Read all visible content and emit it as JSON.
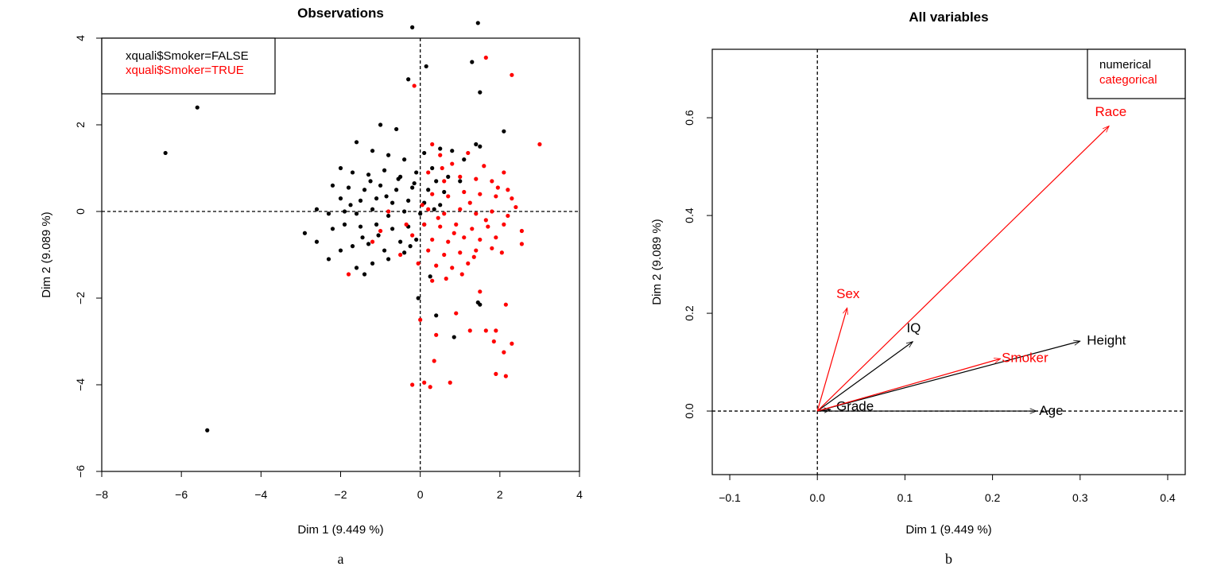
{
  "colors": {
    "black": "#000000",
    "red": "#ff0000"
  },
  "chart_data": [
    {
      "type": "scatter",
      "title": "Observations",
      "xlabel": "Dim 1 (9.449 %)",
      "ylabel": "Dim 2 (9.089 %)",
      "caption": "a",
      "xlim": [
        -8,
        4
      ],
      "ylim": [
        -6,
        4
      ],
      "xticks": [
        -8,
        -6,
        -4,
        -2,
        0,
        2,
        4
      ],
      "yticks": [
        -6,
        -4,
        -2,
        0,
        2,
        4
      ],
      "tick_labels_x": [
        "−8",
        "−6",
        "−4",
        "−2",
        "0",
        "2",
        "4"
      ],
      "tick_labels_y": [
        "−6",
        "−4",
        "−2",
        "0",
        "2",
        "4"
      ],
      "legend": {
        "position": "top-left",
        "entries": [
          {
            "label": "xquali$Smoker=FALSE",
            "color": "#000000"
          },
          {
            "label": "xquali$Smoker=TRUE",
            "color": "#ff0000"
          }
        ]
      },
      "reference_lines": {
        "x": 0,
        "y": 0,
        "style": "dashed"
      },
      "series": [
        {
          "name": "xquali$Smoker=FALSE",
          "color": "#000000",
          "points": [
            [
              -6.4,
              1.35
            ],
            [
              -5.6,
              2.4
            ],
            [
              -5.35,
              -5.05
            ],
            [
              1.45,
              4.35
            ],
            [
              -0.2,
              4.25
            ],
            [
              1.3,
              3.45
            ],
            [
              0.15,
              3.35
            ],
            [
              -0.3,
              3.05
            ],
            [
              1.5,
              2.75
            ],
            [
              2.1,
              1.85
            ],
            [
              -1.0,
              2.0
            ],
            [
              -0.6,
              1.9
            ],
            [
              1.4,
              1.55
            ],
            [
              1.5,
              1.5
            ],
            [
              -1.6,
              1.6
            ],
            [
              -1.2,
              1.4
            ],
            [
              -0.8,
              1.3
            ],
            [
              -0.4,
              1.2
            ],
            [
              0.1,
              1.35
            ],
            [
              0.5,
              1.45
            ],
            [
              0.8,
              1.4
            ],
            [
              1.1,
              1.2
            ],
            [
              -2.0,
              1.0
            ],
            [
              -1.7,
              0.9
            ],
            [
              -1.3,
              0.85
            ],
            [
              -0.9,
              0.95
            ],
            [
              -0.5,
              0.8
            ],
            [
              -0.1,
              0.9
            ],
            [
              0.3,
              1.0
            ],
            [
              0.7,
              0.8
            ],
            [
              1.0,
              0.7
            ],
            [
              -2.2,
              0.6
            ],
            [
              -1.8,
              0.55
            ],
            [
              -1.4,
              0.5
            ],
            [
              -1.0,
              0.6
            ],
            [
              -0.6,
              0.5
            ],
            [
              -0.2,
              0.55
            ],
            [
              0.2,
              0.5
            ],
            [
              0.6,
              0.45
            ],
            [
              -2.0,
              0.3
            ],
            [
              -1.5,
              0.25
            ],
            [
              -1.1,
              0.3
            ],
            [
              -0.7,
              0.2
            ],
            [
              -0.3,
              0.25
            ],
            [
              0.1,
              0.2
            ],
            [
              0.5,
              0.15
            ],
            [
              -2.6,
              0.05
            ],
            [
              -2.3,
              -0.05
            ],
            [
              -1.9,
              0.0
            ],
            [
              -1.6,
              -0.05
            ],
            [
              -1.2,
              0.05
            ],
            [
              -0.8,
              -0.1
            ],
            [
              -0.4,
              0.0
            ],
            [
              0.0,
              -0.05
            ],
            [
              -2.9,
              -0.5
            ],
            [
              -2.6,
              -0.7
            ],
            [
              -2.2,
              -0.4
            ],
            [
              -1.9,
              -0.3
            ],
            [
              -1.5,
              -0.35
            ],
            [
              -1.1,
              -0.3
            ],
            [
              -0.7,
              -0.4
            ],
            [
              -0.3,
              -0.35
            ],
            [
              0.1,
              -0.3
            ],
            [
              -2.0,
              -0.9
            ],
            [
              -1.7,
              -0.8
            ],
            [
              -1.3,
              -0.75
            ],
            [
              -0.9,
              -0.9
            ],
            [
              -0.5,
              -0.7
            ],
            [
              -0.1,
              -0.65
            ],
            [
              -1.6,
              -1.3
            ],
            [
              -1.2,
              -1.2
            ],
            [
              -0.8,
              -1.1
            ],
            [
              -0.4,
              -0.95
            ],
            [
              -1.4,
              -1.45
            ],
            [
              -2.3,
              -1.1
            ],
            [
              0.25,
              -1.5
            ],
            [
              -0.05,
              -2.0
            ],
            [
              0.4,
              -2.4
            ],
            [
              1.45,
              -2.1
            ],
            [
              1.5,
              -2.15
            ],
            [
              0.85,
              -2.9
            ],
            [
              -1.25,
              0.7
            ],
            [
              -0.55,
              0.75
            ],
            [
              0.4,
              0.7
            ],
            [
              -1.75,
              0.15
            ],
            [
              -1.05,
              -0.55
            ],
            [
              -0.85,
              0.35
            ],
            [
              -0.15,
              0.65
            ],
            [
              0.35,
              0.05
            ],
            [
              -1.45,
              -0.6
            ],
            [
              -0.25,
              -0.8
            ]
          ]
        },
        {
          "name": "xquali$Smoker=TRUE",
          "color": "#ff0000",
          "points": [
            [
              1.65,
              3.55
            ],
            [
              2.3,
              3.15
            ],
            [
              -0.15,
              2.9
            ],
            [
              3.0,
              1.55
            ],
            [
              0.3,
              1.55
            ],
            [
              0.5,
              1.3
            ],
            [
              1.2,
              1.35
            ],
            [
              0.8,
              1.1
            ],
            [
              1.6,
              1.05
            ],
            [
              2.1,
              0.9
            ],
            [
              0.2,
              0.9
            ],
            [
              0.6,
              0.7
            ],
            [
              1.0,
              0.8
            ],
            [
              1.4,
              0.75
            ],
            [
              1.8,
              0.7
            ],
            [
              2.2,
              0.5
            ],
            [
              0.3,
              0.4
            ],
            [
              0.7,
              0.35
            ],
            [
              1.1,
              0.45
            ],
            [
              1.5,
              0.4
            ],
            [
              1.9,
              0.35
            ],
            [
              2.3,
              0.3
            ],
            [
              0.2,
              0.05
            ],
            [
              0.6,
              -0.05
            ],
            [
              1.0,
              0.05
            ],
            [
              1.4,
              -0.05
            ],
            [
              1.8,
              0.0
            ],
            [
              2.2,
              -0.1
            ],
            [
              0.1,
              -0.3
            ],
            [
              0.5,
              -0.35
            ],
            [
              0.9,
              -0.3
            ],
            [
              1.3,
              -0.4
            ],
            [
              1.7,
              -0.35
            ],
            [
              2.1,
              -0.3
            ],
            [
              2.55,
              -0.45
            ],
            [
              2.55,
              -0.75
            ],
            [
              -0.2,
              -0.55
            ],
            [
              0.3,
              -0.65
            ],
            [
              0.7,
              -0.7
            ],
            [
              1.1,
              -0.6
            ],
            [
              1.5,
              -0.65
            ],
            [
              1.9,
              -0.6
            ],
            [
              0.2,
              -0.9
            ],
            [
              0.6,
              -1.0
            ],
            [
              1.0,
              -0.95
            ],
            [
              1.4,
              -0.9
            ],
            [
              1.8,
              -0.85
            ],
            [
              -0.05,
              -1.2
            ],
            [
              0.4,
              -1.25
            ],
            [
              0.8,
              -1.3
            ],
            [
              1.2,
              -1.2
            ],
            [
              -0.5,
              -1.0
            ],
            [
              -1.0,
              -0.45
            ],
            [
              -1.8,
              -1.45
            ],
            [
              0.3,
              -1.6
            ],
            [
              1.5,
              -1.85
            ],
            [
              0.0,
              -2.5
            ],
            [
              0.9,
              -2.35
            ],
            [
              1.9,
              -2.75
            ],
            [
              2.15,
              -2.15
            ],
            [
              2.1,
              -3.25
            ],
            [
              2.3,
              -3.05
            ],
            [
              1.65,
              -2.75
            ],
            [
              1.25,
              -2.75
            ],
            [
              0.4,
              -2.85
            ],
            [
              1.85,
              -3.0
            ],
            [
              0.35,
              -3.45
            ],
            [
              -0.2,
              -4.0
            ],
            [
              0.1,
              -3.95
            ],
            [
              0.25,
              -4.05
            ],
            [
              0.75,
              -3.95
            ],
            [
              1.9,
              -3.75
            ],
            [
              2.15,
              -3.8
            ],
            [
              0.45,
              -0.15
            ],
            [
              1.25,
              0.2
            ],
            [
              1.65,
              -0.2
            ],
            [
              0.85,
              -0.5
            ],
            [
              2.4,
              0.1
            ],
            [
              -0.8,
              0.0
            ],
            [
              -1.2,
              -0.7
            ],
            [
              0.05,
              0.15
            ],
            [
              1.95,
              0.55
            ],
            [
              0.55,
              1.0
            ],
            [
              1.05,
              -1.45
            ],
            [
              0.65,
              -1.55
            ],
            [
              2.05,
              -0.95
            ],
            [
              1.35,
              -1.05
            ],
            [
              -0.35,
              -0.3
            ]
          ]
        }
      ]
    },
    {
      "type": "arrows",
      "title": "All variables",
      "xlabel": "Dim 1 (9.449 %)",
      "ylabel": "Dim 2 (9.089 %)",
      "caption": "b",
      "xlim": [
        -0.12,
        0.42
      ],
      "ylim": [
        -0.13,
        0.74
      ],
      "xticks": [
        -0.1,
        0.0,
        0.1,
        0.2,
        0.3,
        0.4
      ],
      "yticks": [
        0.0,
        0.2,
        0.4,
        0.6
      ],
      "tick_labels_x": [
        "−0.1",
        "0.0",
        "0.1",
        "0.2",
        "0.3",
        "0.4"
      ],
      "tick_labels_y": [
        "0.0",
        "0.2",
        "0.4",
        "0.6"
      ],
      "legend": {
        "position": "top-right",
        "entries": [
          {
            "label": "numerical",
            "color": "#000000"
          },
          {
            "label": "categorical",
            "color": "#ff0000"
          }
        ]
      },
      "reference_lines": {
        "x": 0,
        "y": 0,
        "style": "dashed"
      },
      "series": [
        {
          "name": "numerical",
          "color": "#000000",
          "vectors": [
            {
              "label": "IQ",
              "x": 0.109,
              "y": 0.142,
              "lx": 0.11,
              "ly": 0.168
            },
            {
              "label": "Height",
              "x": 0.3,
              "y": 0.143,
              "lx": 0.33,
              "ly": 0.143
            },
            {
              "label": "Grade",
              "x": 0.015,
              "y": 0.003,
              "lx": 0.043,
              "ly": 0.008
            },
            {
              "label": "Age",
              "x": 0.25,
              "y": 0.0,
              "lx": 0.267,
              "ly": -0.001
            }
          ]
        },
        {
          "name": "categorical",
          "color": "#ff0000",
          "vectors": [
            {
              "label": "Sex",
              "x": 0.034,
              "y": 0.211,
              "lx": 0.035,
              "ly": 0.238
            },
            {
              "label": "Race",
              "x": 0.333,
              "y": 0.583,
              "lx": 0.335,
              "ly": 0.611
            },
            {
              "label": "Smoker",
              "x": 0.209,
              "y": 0.107,
              "lx": 0.237,
              "ly": 0.107
            }
          ]
        }
      ]
    }
  ]
}
